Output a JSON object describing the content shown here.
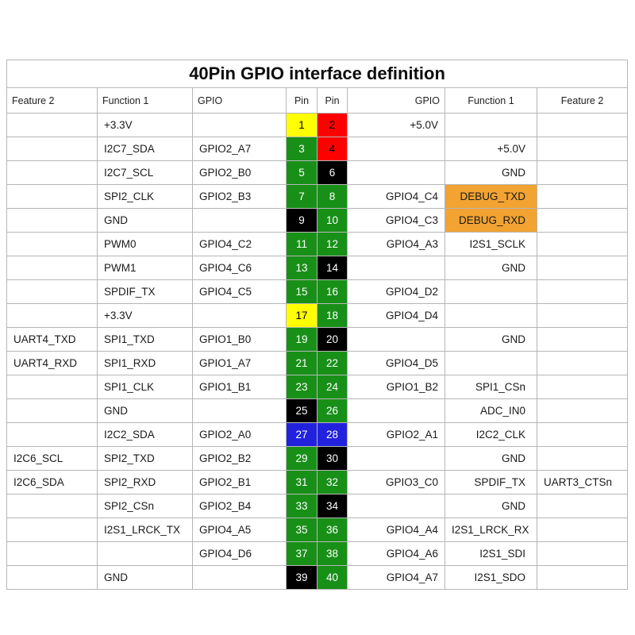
{
  "title": "40Pin GPIO interface definition",
  "headers": {
    "feature2_left": "Feature 2",
    "function1_left": "Function 1",
    "gpio_left": "GPIO",
    "pin_left": "Pin",
    "pin_right": "Pin",
    "gpio_right": "GPIO",
    "function1_right": "Function 1",
    "feature2_right": "Feature 2"
  },
  "pin_colors": {
    "green": "#189018",
    "red": "#ff0000",
    "black": "#000000",
    "yellow": "#ffff00",
    "blue": "#2222dd",
    "orange_highlight": "#f2a331"
  },
  "pin_text_colors": {
    "green": "#ffffff",
    "red": "#000000",
    "black": "#ffffff",
    "yellow": "#000000",
    "blue": "#ffffff"
  },
  "rows": [
    {
      "left": {
        "feature2": "",
        "function1": "+3.3V",
        "gpio": ""
      },
      "pins": [
        {
          "num": "1",
          "color": "yellow"
        },
        {
          "num": "2",
          "color": "red"
        }
      ],
      "right": {
        "gpio": "+5.0V",
        "function1": "",
        "feature2": "",
        "highlight": false
      }
    },
    {
      "left": {
        "feature2": "",
        "function1": "I2C7_SDA",
        "gpio": "GPIO2_A7"
      },
      "pins": [
        {
          "num": "3",
          "color": "green"
        },
        {
          "num": "4",
          "color": "red"
        }
      ],
      "right": {
        "gpio": "",
        "function1": "+5.0V",
        "feature2": "",
        "highlight": false
      }
    },
    {
      "left": {
        "feature2": "",
        "function1": "I2C7_SCL",
        "gpio": "GPIO2_B0"
      },
      "pins": [
        {
          "num": "5",
          "color": "green"
        },
        {
          "num": "6",
          "color": "black"
        }
      ],
      "right": {
        "gpio": "",
        "function1": "GND",
        "feature2": "",
        "highlight": false
      }
    },
    {
      "left": {
        "feature2": "",
        "function1": "SPI2_CLK",
        "gpio": "GPIO2_B3"
      },
      "pins": [
        {
          "num": "7",
          "color": "green"
        },
        {
          "num": "8",
          "color": "green"
        }
      ],
      "right": {
        "gpio": "GPIO4_C4",
        "function1": "DEBUG_TXD",
        "feature2": "",
        "highlight": true
      }
    },
    {
      "left": {
        "feature2": "",
        "function1": "GND",
        "gpio": ""
      },
      "pins": [
        {
          "num": "9",
          "color": "black"
        },
        {
          "num": "10",
          "color": "green"
        }
      ],
      "right": {
        "gpio": "GPIO4_C3",
        "function1": "DEBUG_RXD",
        "feature2": "",
        "highlight": true
      }
    },
    {
      "left": {
        "feature2": "",
        "function1": "PWM0",
        "gpio": "GPIO4_C2"
      },
      "pins": [
        {
          "num": "11",
          "color": "green"
        },
        {
          "num": "12",
          "color": "green"
        }
      ],
      "right": {
        "gpio": "GPIO4_A3",
        "function1": "I2S1_SCLK",
        "feature2": "",
        "highlight": false
      }
    },
    {
      "left": {
        "feature2": "",
        "function1": "PWM1",
        "gpio": "GPIO4_C6"
      },
      "pins": [
        {
          "num": "13",
          "color": "green"
        },
        {
          "num": "14",
          "color": "black"
        }
      ],
      "right": {
        "gpio": "",
        "function1": "GND",
        "feature2": "",
        "highlight": false
      }
    },
    {
      "left": {
        "feature2": "",
        "function1": "SPDIF_TX",
        "gpio": "GPIO4_C5"
      },
      "pins": [
        {
          "num": "15",
          "color": "green"
        },
        {
          "num": "16",
          "color": "green"
        }
      ],
      "right": {
        "gpio": "GPIO4_D2",
        "function1": "",
        "feature2": "",
        "highlight": false
      }
    },
    {
      "left": {
        "feature2": "",
        "function1": "+3.3V",
        "gpio": ""
      },
      "pins": [
        {
          "num": "17",
          "color": "yellow"
        },
        {
          "num": "18",
          "color": "green"
        }
      ],
      "right": {
        "gpio": "GPIO4_D4",
        "function1": "",
        "feature2": "",
        "highlight": false
      }
    },
    {
      "left": {
        "feature2": "UART4_TXD",
        "function1": "SPI1_TXD",
        "gpio": "GPIO1_B0"
      },
      "pins": [
        {
          "num": "19",
          "color": "green"
        },
        {
          "num": "20",
          "color": "black"
        }
      ],
      "right": {
        "gpio": "",
        "function1": "GND",
        "feature2": "",
        "highlight": false
      }
    },
    {
      "left": {
        "feature2": "UART4_RXD",
        "function1": "SPI1_RXD",
        "gpio": "GPIO1_A7"
      },
      "pins": [
        {
          "num": "21",
          "color": "green"
        },
        {
          "num": "22",
          "color": "green"
        }
      ],
      "right": {
        "gpio": "GPIO4_D5",
        "function1": "",
        "feature2": "",
        "highlight": false
      }
    },
    {
      "left": {
        "feature2": "",
        "function1": "SPI1_CLK",
        "gpio": "GPIO1_B1"
      },
      "pins": [
        {
          "num": "23",
          "color": "green"
        },
        {
          "num": "24",
          "color": "green"
        }
      ],
      "right": {
        "gpio": "GPIO1_B2",
        "function1": "SPI1_CSn",
        "feature2": "",
        "highlight": false
      }
    },
    {
      "left": {
        "feature2": "",
        "function1": "GND",
        "gpio": ""
      },
      "pins": [
        {
          "num": "25",
          "color": "black"
        },
        {
          "num": "26",
          "color": "green"
        }
      ],
      "right": {
        "gpio": "",
        "function1": "ADC_IN0",
        "feature2": "",
        "highlight": false
      }
    },
    {
      "left": {
        "feature2": "",
        "function1": "I2C2_SDA",
        "gpio": "GPIO2_A0"
      },
      "pins": [
        {
          "num": "27",
          "color": "blue"
        },
        {
          "num": "28",
          "color": "blue"
        }
      ],
      "right": {
        "gpio": "GPIO2_A1",
        "function1": "I2C2_CLK",
        "feature2": "",
        "highlight": false
      }
    },
    {
      "left": {
        "feature2": "I2C6_SCL",
        "function1": "SPI2_TXD",
        "gpio": "GPIO2_B2"
      },
      "pins": [
        {
          "num": "29",
          "color": "green"
        },
        {
          "num": "30",
          "color": "black"
        }
      ],
      "right": {
        "gpio": "",
        "function1": "GND",
        "feature2": "",
        "highlight": false
      }
    },
    {
      "left": {
        "feature2": "I2C6_SDA",
        "function1": "SPI2_RXD",
        "gpio": "GPIO2_B1"
      },
      "pins": [
        {
          "num": "31",
          "color": "green"
        },
        {
          "num": "32",
          "color": "green"
        }
      ],
      "right": {
        "gpio": "GPIO3_C0",
        "function1": "SPDIF_TX",
        "feature2": "UART3_CTSn",
        "highlight": false
      }
    },
    {
      "left": {
        "feature2": "",
        "function1": "SPI2_CSn",
        "gpio": "GPIO2_B4"
      },
      "pins": [
        {
          "num": "33",
          "color": "green"
        },
        {
          "num": "34",
          "color": "black"
        }
      ],
      "right": {
        "gpio": "",
        "function1": "GND",
        "feature2": "",
        "highlight": false
      }
    },
    {
      "left": {
        "feature2": "",
        "function1": "I2S1_LRCK_TX",
        "gpio": "GPIO4_A5"
      },
      "pins": [
        {
          "num": "35",
          "color": "green"
        },
        {
          "num": "36",
          "color": "green"
        }
      ],
      "right": {
        "gpio": "GPIO4_A4",
        "function1": "I2S1_LRCK_RX",
        "feature2": "",
        "highlight": false
      }
    },
    {
      "left": {
        "feature2": "",
        "function1": "",
        "gpio": "GPIO4_D6"
      },
      "pins": [
        {
          "num": "37",
          "color": "green"
        },
        {
          "num": "38",
          "color": "green"
        }
      ],
      "right": {
        "gpio": "GPIO4_A6",
        "function1": "I2S1_SDI",
        "feature2": "",
        "highlight": false
      }
    },
    {
      "left": {
        "feature2": "",
        "function1": "GND",
        "gpio": ""
      },
      "pins": [
        {
          "num": "39",
          "color": "black"
        },
        {
          "num": "40",
          "color": "green"
        }
      ],
      "right": {
        "gpio": "GPIO4_A7",
        "function1": "I2S1_SDO",
        "feature2": "",
        "highlight": false
      }
    }
  ]
}
